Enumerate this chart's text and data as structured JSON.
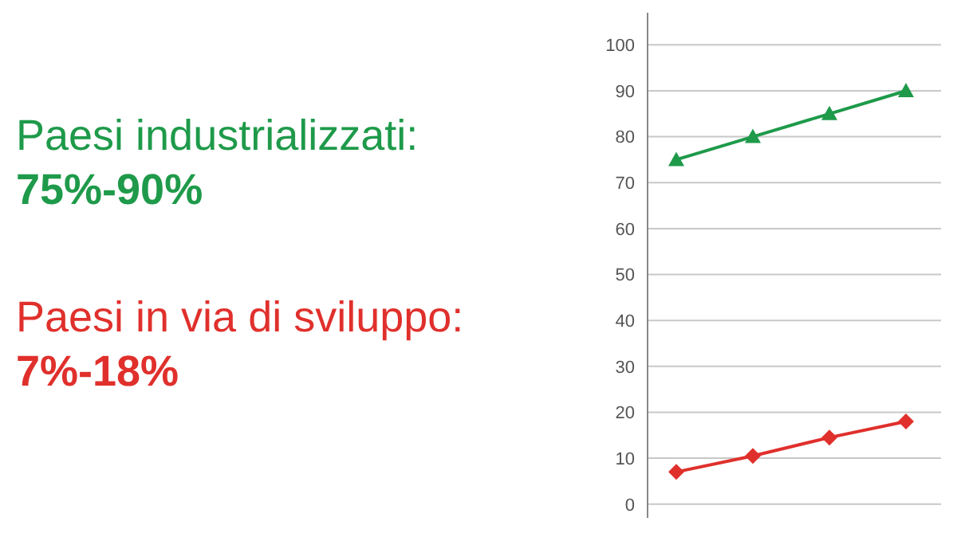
{
  "chart_data": {
    "type": "line",
    "categories": [
      null,
      null,
      null,
      null
    ],
    "series": [
      {
        "name": "Paesi industrializzati:",
        "color": "#1e9a4a",
        "marker": "triangle",
        "values": [
          75,
          80,
          85,
          90
        ]
      },
      {
        "name": "Paesi in via di sviluppo:",
        "color": "#e0302c",
        "marker": "diamond",
        "values": [
          7,
          10.5,
          14.5,
          18
        ]
      }
    ],
    "annotations": [
      "75%-90%",
      "7%-18%"
    ],
    "ylim": [
      -3,
      107
    ],
    "yticks": [
      0,
      10,
      20,
      30,
      40,
      50,
      60,
      70,
      80,
      90,
      100
    ],
    "grid": "y",
    "legend": "left",
    "line_style": "solid"
  }
}
